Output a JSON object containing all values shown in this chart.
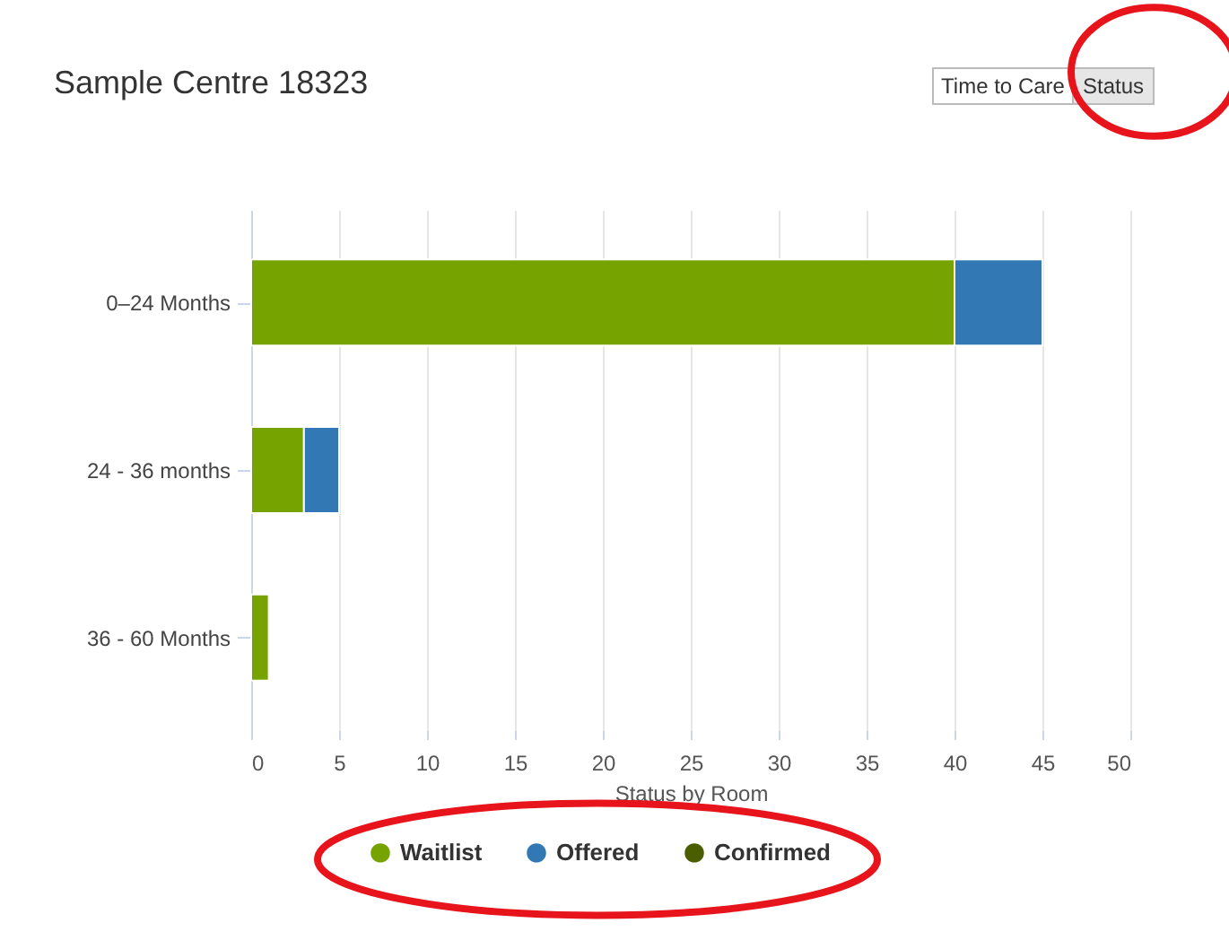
{
  "chart_data": {
    "type": "bar",
    "orientation": "horizontal",
    "stacked": true,
    "title": "Sample Centre 18323",
    "xlabel": "Status by Room",
    "categories": [
      "0–24 Months",
      "24 - 36 months",
      "36 - 60 Months"
    ],
    "series": [
      {
        "name": "Waitlist",
        "color": "#77a300",
        "values": [
          40,
          3,
          1
        ]
      },
      {
        "name": "Offered",
        "color": "#3278b5",
        "values": [
          5,
          2,
          0
        ]
      },
      {
        "name": "Confirmed",
        "color": "#4a5e00",
        "values": [
          0,
          0,
          0
        ]
      }
    ],
    "xlim": [
      0,
      50
    ],
    "xticks": [
      0,
      5,
      10,
      15,
      20,
      25,
      30,
      35,
      40,
      45,
      50
    ],
    "grid": "x",
    "legend": "bottom",
    "annotations": [
      "Time to Care",
      "Status"
    ]
  }
}
